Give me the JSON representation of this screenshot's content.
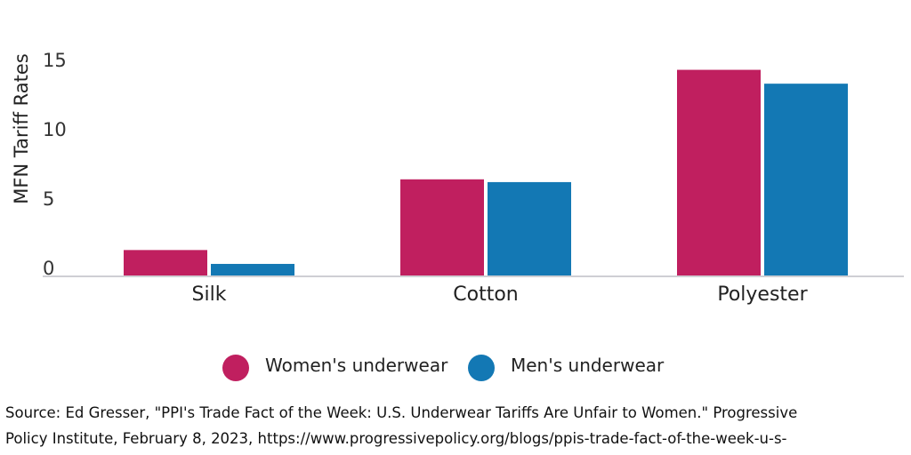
{
  "chart_data": {
    "type": "bar",
    "categories": [
      "Silk",
      "Cotton",
      "Polyester"
    ],
    "series": [
      {
        "name": "Women's underwear",
        "values": [
          1.9,
          7.0,
          14.9
        ],
        "color": "#c01f5f"
      },
      {
        "name": "Men's underwear",
        "values": [
          0.9,
          6.8,
          13.9
        ],
        "color": "#1378b4"
      }
    ],
    "xlabel": "",
    "ylabel": "MFN Tariff Rates",
    "ylim": [
      0,
      16
    ],
    "yticks": [
      0,
      5,
      10,
      15
    ],
    "grid": false,
    "legend": "bottom"
  },
  "source": {
    "line1": "Source: Ed Gresser, \"PPI's Trade Fact of the Week: U.S. Underwear Tariffs Are Unfair to Women.\" Progressive",
    "line2": "Policy Institute, February 8, 2023, https://www.progressivepolicy.org/blogs/ppis-trade-fact-of-the-week-u-s-"
  }
}
